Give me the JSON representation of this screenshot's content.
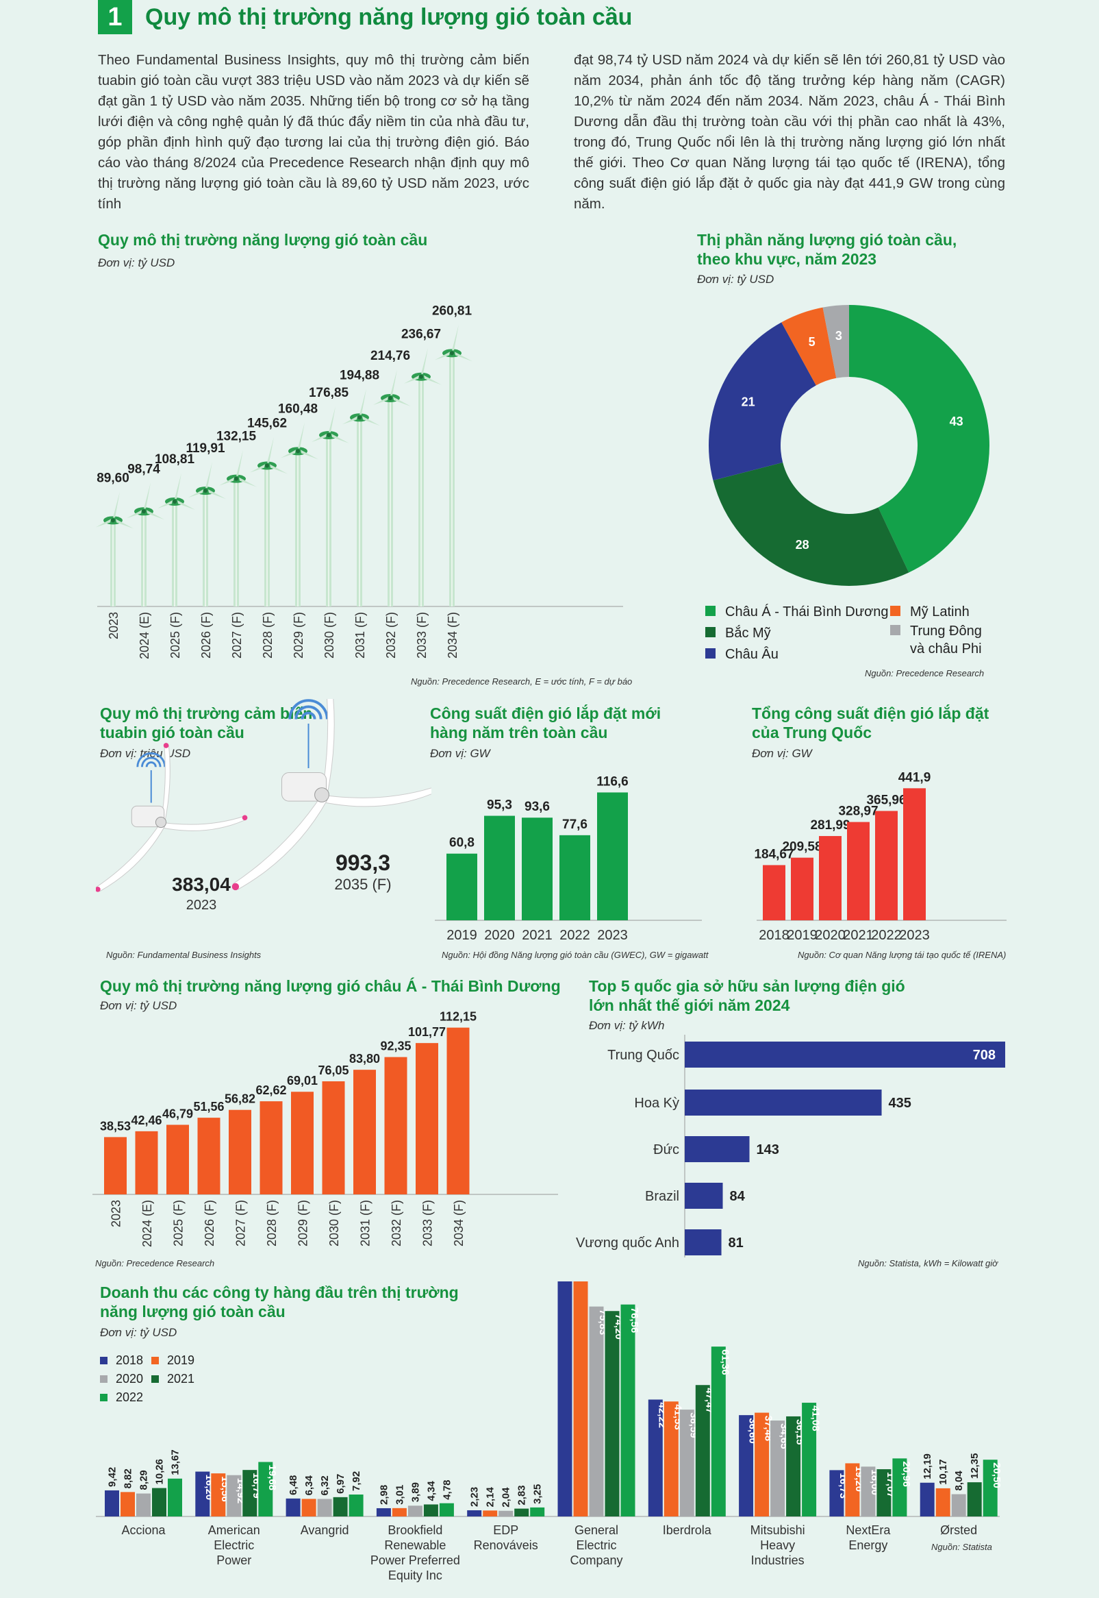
{
  "header": {
    "number": "1",
    "title": "Quy mô thị trường năng lượng gió toàn cầu"
  },
  "intro": {
    "left": "Theo Fundamental Business Insights, quy mô thị trường cảm biến tuabin gió toàn cầu vượt 383 triệu USD vào năm 2023 và dự kiến sẽ đạt gần 1 tỷ USD vào năm 2035. Những tiến bộ trong cơ sở hạ tầng lưới điện và công nghệ quản lý đã thúc đẩy niềm tin của nhà đầu tư, góp phần định hình quỹ đạo tương lai của thị trường điện gió. Báo cáo vào tháng 8/2024 của Precedence Research nhận định quy mô thị trường năng lượng gió toàn cầu là 89,60 tỷ USD năm 2023, ước tính",
    "right": "đạt 98,74 tỷ USD năm 2024 và dự kiến sẽ lên tới 260,81 tỷ USD vào năm 2034, phản ánh tốc độ tăng trưởng kép hàng năm (CAGR) 10,2% từ năm 2024 đến năm 2034. Năm 2023, châu Á - Thái Bình Dương dẫn đầu thị trường toàn cầu với thị phần cao nhất là 43%, trong đó, Trung Quốc nổi lên là thị trường năng lượng gió lớn nhất thế giới. Theo Cơ quan Năng lượng tái tạo quốc tế (IRENA), tổng công suất điện gió lắp đặt ở quốc gia này đạt 441,9 GW trong cùng năm."
  },
  "chart_data": [
    {
      "id": "global_market",
      "type": "bar",
      "title": "Quy mô thị trường năng lượng gió toàn cầu",
      "unit": "Đơn vị: tỷ USD",
      "categories": [
        "2023",
        "2024 (E)",
        "2025 (F)",
        "2026 (F)",
        "2027 (F)",
        "2028 (F)",
        "2029 (F)",
        "2030 (F)",
        "2031 (F)",
        "2032 (F)",
        "2033 (F)",
        "2034 (F)"
      ],
      "values": [
        89.6,
        98.74,
        108.81,
        119.91,
        132.15,
        145.62,
        160.48,
        176.85,
        194.88,
        214.76,
        236.67,
        260.81
      ],
      "labels": [
        "89,60",
        "98,74",
        "108,81",
        "119,91",
        "132,15",
        "145,62",
        "160,48",
        "176,85",
        "194,88",
        "214,76",
        "236,67",
        "260,81"
      ],
      "source": "Nguồn: Precedence Research, E = ước tính, F = dự báo",
      "colors": [
        "#c7e6cf",
        "#2f9e52"
      ]
    },
    {
      "id": "regional_share",
      "type": "pie",
      "title_line1": "Thị phần năng lượng gió toàn cầu,",
      "title_line2": "theo khu vực, năm 2023",
      "unit": "Đơn vị: tỷ USD",
      "slices": [
        {
          "name": "Châu Á - Thái Bình Dương",
          "value": 43,
          "color": "#13a14a"
        },
        {
          "name": "Bắc Mỹ",
          "value": 28,
          "color": "#166b32"
        },
        {
          "name": "Châu Âu",
          "value": 21,
          "color": "#2c3a93"
        },
        {
          "name": "Mỹ Latinh",
          "value": 5,
          "color": "#f26522"
        },
        {
          "name": "Trung Đông",
          "name2": "và châu Phi",
          "value": 3,
          "color": "#a7a9ac"
        }
      ],
      "source": "Nguồn: Precedence Research"
    },
    {
      "id": "sensor_market",
      "type": "bar",
      "title_line1": "Quy mô thị trường cảm biến",
      "title_line2": "tuabin gió toàn cầu",
      "unit": "Đơn vị: triệu USD",
      "values": [
        383.04,
        993.3
      ],
      "labels": [
        "383,04",
        "993,3"
      ],
      "categories": [
        "2023",
        "2035 (F)"
      ],
      "source": "Nguồn: Fundamental Business Insights"
    },
    {
      "id": "new_capacity",
      "type": "bar",
      "title_line1": "Công suất điện gió lắp đặt mới",
      "title_line2": "hàng năm trên toàn cầu",
      "unit": "Đơn vị: GW",
      "categories": [
        "2019",
        "2020",
        "2021",
        "2022",
        "2023"
      ],
      "values": [
        60.8,
        95.3,
        93.6,
        77.6,
        116.6
      ],
      "labels": [
        "60,8",
        "95,3",
        "93,6",
        "77,6",
        "116,6"
      ],
      "source": "Nguồn: Hội đồng Năng lượng gió toàn cầu (GWEC), GW = gigawatt",
      "color": "#13a14a"
    },
    {
      "id": "china_capacity",
      "type": "bar",
      "title_line1": "Tổng công suất điện gió lắp đặt",
      "title_line2": "của Trung Quốc",
      "unit": "Đơn vị: GW",
      "categories": [
        "2018",
        "2019",
        "2020",
        "2021",
        "2022",
        "2023"
      ],
      "values": [
        184.67,
        209.58,
        281.99,
        328.97,
        365.96,
        441.9
      ],
      "labels": [
        "184,67",
        "209,58",
        "281,99",
        "328,97",
        "365,96",
        "441,9"
      ],
      "source": "Nguồn: Cơ quan Năng lượng tái tạo quốc tế (IRENA)",
      "color": "#ee3b33"
    },
    {
      "id": "apac_market",
      "type": "bar",
      "title": "Quy mô thị trường năng lượng gió châu Á - Thái Bình Dương",
      "unit": "Đơn vị: tỷ USD",
      "categories": [
        "2023",
        "2024 (E)",
        "2025 (F)",
        "2026 (F)",
        "2027 (F)",
        "2028 (F)",
        "2029 (F)",
        "2030 (F)",
        "2031 (F)",
        "2032 (F)",
        "2033 (F)",
        "2034 (F)"
      ],
      "values": [
        38.53,
        42.46,
        46.79,
        51.56,
        56.82,
        62.62,
        69.01,
        76.05,
        83.8,
        92.35,
        101.77,
        112.15
      ],
      "labels": [
        "38,53",
        "42,46",
        "46,79",
        "51,56",
        "56,82",
        "62,62",
        "69,01",
        "76,05",
        "83,80",
        "92,35",
        "101,77",
        "112,15"
      ],
      "source": "Nguồn: Precedence Research",
      "color": "#f15a24"
    },
    {
      "id": "top5",
      "type": "bar",
      "orientation": "horizontal",
      "title_line1": "Top 5 quốc gia sở hữu sản lượng điện gió",
      "title_line2": "lớn nhất thế giới năm 2024",
      "unit": "Đơn vị: tỷ kWh",
      "categories": [
        "Trung Quốc",
        "Hoa Kỳ",
        "Đức",
        "Brazil",
        "Vương quốc Anh"
      ],
      "values": [
        708,
        435,
        143,
        84,
        81
      ],
      "labels": [
        "708",
        "435",
        "143",
        "84",
        "81"
      ],
      "source": "Nguồn: Statista, kWh = Kilowatt giờ",
      "color": "#2c3a93"
    },
    {
      "id": "companies",
      "type": "bar",
      "title_line1": "Doanh thu các công ty hàng đầu trên thị trường",
      "title_line2": "năng lượng gió toàn cầu",
      "unit": "Đơn vị: tỷ USD",
      "categories": [
        [
          "Acciona"
        ],
        [
          "American",
          "Electric",
          "Power"
        ],
        [
          "Avangrid"
        ],
        [
          "Brookfield",
          "Renewable",
          "Power Preferred",
          "Equity Inc"
        ],
        [
          "EDP",
          "Renováveis"
        ],
        [
          "General",
          "Electric",
          "Company"
        ],
        [
          "Iberdrola"
        ],
        [
          "Mitsubishi",
          "Heavy",
          "Industries"
        ],
        [
          "NextEra",
          "Energy"
        ],
        [
          "Ørsted"
        ]
      ],
      "series": [
        {
          "name": "2018",
          "color": "#2c3a93",
          "values": [
            9.42,
            16.2,
            6.48,
            2.98,
            2.23,
            97.0,
            42.22,
            36.6,
            16.73,
            12.19
          ],
          "labels": [
            "9,42",
            "16,20",
            "6,48",
            "2,98",
            "2,23",
            "97,00",
            "42,22",
            "36,60",
            "16,73",
            "12,19"
          ]
        },
        {
          "name": "2019",
          "color": "#f26522",
          "values": [
            8.82,
            15.56,
            6.34,
            3.01,
            2.14,
            95.2,
            41.53,
            37.48,
            19.2,
            10.17
          ],
          "labels": [
            "8,82",
            "15,56",
            "6,34",
            "3,01",
            "2,14",
            "95,20",
            "41,53",
            "37,48",
            "19,20",
            "10,17"
          ]
        },
        {
          "name": "2020",
          "color": "#a7a9ac",
          "values": [
            8.29,
            14.92,
            6.32,
            3.89,
            2.04,
            75.83,
            38.59,
            34.65,
            18.0,
            8.04
          ],
          "labels": [
            "8,29",
            "14,92",
            "6,32",
            "3,89",
            "2,04",
            "75,83",
            "38,59",
            "34,65",
            "18,00",
            "8,04"
          ]
        },
        {
          "name": "2021",
          "color": "#166b32",
          "values": [
            10.26,
            16.79,
            6.97,
            4.34,
            2.83,
            74.2,
            47.47,
            36.15,
            17.07,
            12.35
          ],
          "labels": [
            "10,26",
            "16,79",
            "6,97",
            "4,34",
            "2,83",
            "74,20",
            "47,47",
            "36,15",
            "17,07",
            "12,35"
          ]
        },
        {
          "name": "2022",
          "color": "#13a14a",
          "values": [
            13.67,
            19.68,
            7.92,
            4.78,
            3.25,
            76.56,
            61.36,
            41.08,
            20.96,
            20.5
          ],
          "labels": [
            "13,67",
            "19,68",
            "7,92",
            "4,78",
            "3,25",
            "76,56",
            "61,36",
            "41,08",
            "20,96",
            "20,50"
          ]
        }
      ],
      "source": "Nguồn: Statista"
    }
  ]
}
